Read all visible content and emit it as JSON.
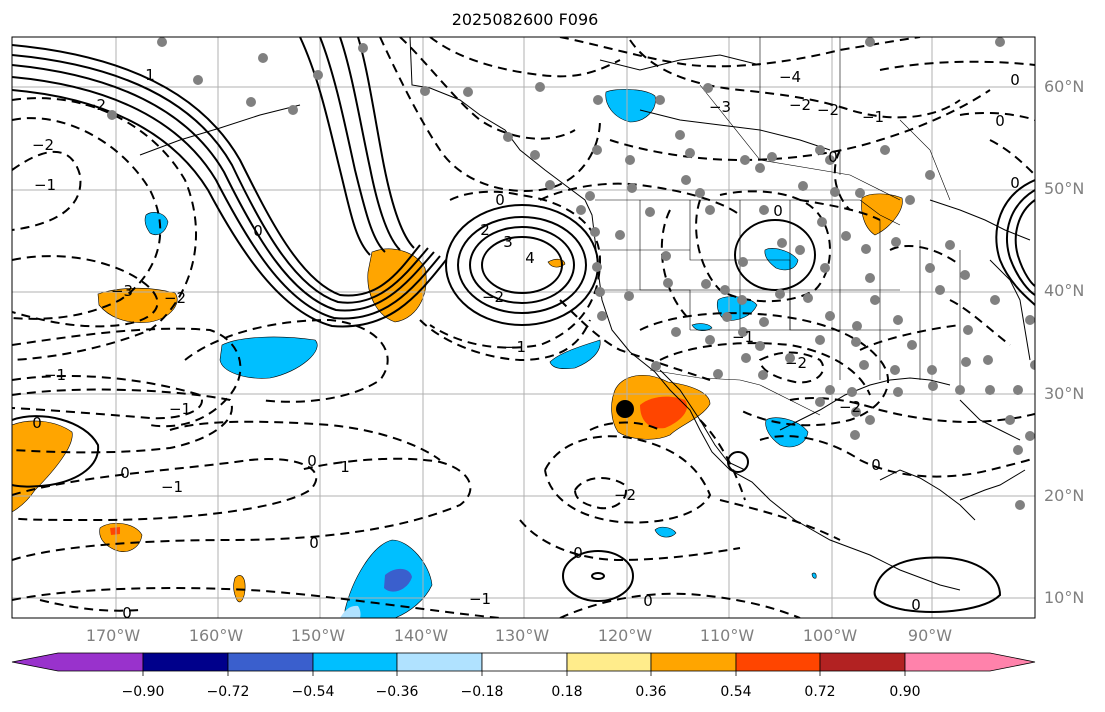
{
  "title": "2025082600 F096",
  "lat_labels": [
    "60°N",
    "50°N",
    "40°N",
    "30°N",
    "20°N",
    "10°N"
  ],
  "lon_labels": [
    "170°W",
    "160°W",
    "150°W",
    "140°W",
    "130°W",
    "120°W",
    "110°W",
    "100°W",
    "90°W"
  ],
  "colorbar": {
    "tick_labels": [
      "−0.90",
      "−0.72",
      "−0.54",
      "−0.36",
      "−0.18",
      "0.18",
      "0.36",
      "0.54",
      "0.72",
      "0.90"
    ],
    "colors": [
      "#9932cc",
      "#00008b",
      "#3a5fcd",
      "#00bfff",
      "#b0e2ff",
      "#ffffff",
      "#ffec8b",
      "#ffa500",
      "#ff4500",
      "#b22222",
      "#ff82ab"
    ]
  },
  "contour_labels": [
    "0",
    "1",
    "2",
    "3",
    "4",
    "−1",
    "−2",
    "−3",
    "−4"
  ],
  "colors": {
    "positive_contour": "#000000",
    "negative_contour": "#000000",
    "grid": "#b0b0b0",
    "station_dot": "#808080",
    "marker": "#000000"
  }
}
